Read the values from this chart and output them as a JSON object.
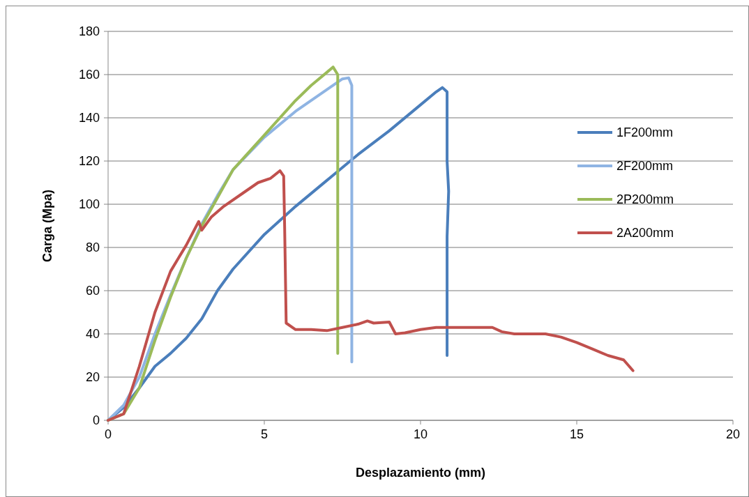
{
  "chart_data": {
    "type": "line",
    "xlabel": "Desplazamiento (mm)",
    "ylabel": "Carga (Mpa)",
    "xlim": [
      0,
      20
    ],
    "xticks": [
      0,
      5,
      10,
      15,
      20
    ],
    "ylim": [
      0,
      180
    ],
    "yticks": [
      0,
      20,
      40,
      60,
      80,
      100,
      120,
      140,
      160,
      180
    ],
    "grid": "y",
    "legend": "right",
    "series": [
      {
        "name": "1F200mm",
        "color": "#4a7ebb",
        "x": [
          0,
          0.5,
          1,
          1.5,
          2,
          2.5,
          3,
          3.5,
          4,
          5,
          6,
          7,
          8,
          9,
          10,
          10.5,
          10.7,
          10.85,
          10.85,
          10.85,
          10.9,
          10.85,
          10.85,
          10.85
        ],
        "values": [
          0,
          6,
          15,
          25,
          31,
          38,
          47,
          60,
          70,
          86,
          99,
          111,
          123,
          134,
          146,
          152,
          154,
          152,
          140,
          120,
          106,
          85,
          60,
          30
        ]
      },
      {
        "name": "2F200mm",
        "color": "#8fb4e3",
        "x": [
          0,
          0.5,
          1,
          1.5,
          2,
          2.5,
          3,
          3.5,
          4,
          5,
          6,
          7,
          7.5,
          7.7,
          7.8,
          7.8,
          7.8,
          7.8,
          7.8
        ],
        "values": [
          0,
          7,
          20,
          40,
          58,
          75,
          91,
          104,
          116,
          131,
          143,
          153,
          158,
          158.5,
          155,
          120,
          80,
          60,
          27
        ]
      },
      {
        "name": "2P200mm",
        "color": "#9bbb59",
        "x": [
          0,
          0.5,
          1,
          1.5,
          2,
          2.5,
          3,
          3.5,
          4,
          5,
          6,
          6.5,
          7,
          7.2,
          7.35,
          7.35,
          7.35,
          7.35,
          7.35
        ],
        "values": [
          0,
          3,
          15,
          37,
          57,
          75,
          90,
          103,
          116,
          132,
          148,
          155,
          161,
          163.5,
          160,
          140,
          100,
          60,
          31
        ]
      },
      {
        "name": "2A200mm",
        "color": "#c0504d",
        "x": [
          0,
          0.5,
          1,
          1.5,
          2,
          2.5,
          2.9,
          3,
          3.3,
          3.7,
          4.3,
          4.8,
          5.2,
          5.5,
          5.62,
          5.65,
          5.7,
          6,
          6.5,
          7,
          7.5,
          8,
          8.3,
          8.5,
          9,
          9.2,
          9.5,
          10,
          10.5,
          11,
          12,
          12.3,
          12.6,
          13,
          14,
          14.5,
          15,
          15.5,
          16,
          16.5,
          16.8
        ],
        "values": [
          0,
          3,
          25,
          50,
          69,
          81,
          92,
          88,
          94,
          99,
          105,
          110,
          112,
          115.5,
          113,
          90,
          45,
          42,
          42,
          41.5,
          43,
          44.5,
          46,
          45,
          45.5,
          40,
          40.5,
          42,
          43,
          43,
          43,
          43,
          41,
          40,
          40,
          38.5,
          36,
          33,
          30,
          28,
          23
        ]
      }
    ]
  }
}
